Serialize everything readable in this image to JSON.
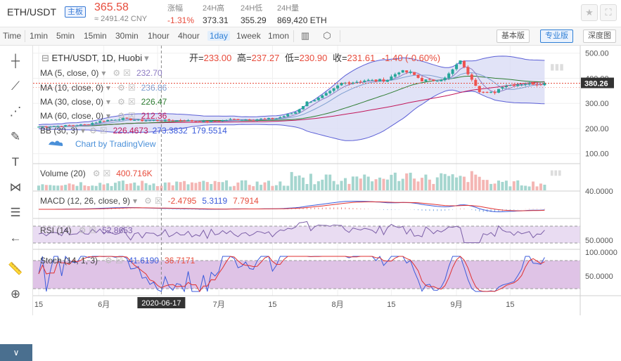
{
  "header": {
    "symbol": "ETH/USDT",
    "board_tag": "主板",
    "price": "365.58",
    "price_cny": "≈ 2491.42 CNY",
    "stats": [
      {
        "label": "涨幅",
        "value": "-1.31%",
        "color": "red"
      },
      {
        "label": "24H高",
        "value": "373.31",
        "color": "dark"
      },
      {
        "label": "24H低",
        "value": "355.29",
        "color": "dark"
      },
      {
        "label": "24H量",
        "value": "869,420 ETH",
        "color": "dark"
      }
    ],
    "icons": [
      "star-icon",
      "fullscreen-icon"
    ]
  },
  "toolbar": {
    "timeframes": [
      "Time",
      "1min",
      "5min",
      "15min",
      "30min",
      "1hour",
      "4hour",
      "1day",
      "1week",
      "1mon"
    ],
    "active_timeframe": "1day",
    "icons": [
      "candle-style-icon",
      "indicator-settings-icon"
    ],
    "views": [
      "基本版",
      "专业版",
      "深度图"
    ],
    "active_view": "专业版"
  },
  "left_tools": [
    "crosshair-icon",
    "trend-line-icon",
    "fib-icon",
    "brush-icon",
    "text-icon",
    "pattern-icon",
    "measure-icon",
    "back-arrow-icon",
    "ruler-icon",
    "zoom-icon"
  ],
  "colors": {
    "up": "#26a69a",
    "down": "#ef5350",
    "ma5": "#8e7cc3",
    "ma10": "#7f9fd0",
    "ma30": "#2e7d32",
    "ma60": "#c2185b",
    "bb_band": "#5b5fd6",
    "bb_fill": "#dadcf5",
    "macd_line": "#3b5bdb",
    "signal_line": "#e03131",
    "rsi": "#7b5ea7",
    "stoch_k": "#3b5bdb",
    "stoch_d": "#e03131"
  },
  "chart_data": {
    "type": "candlestick",
    "title": "ETH/USDT, 1D, Huobi",
    "ohlc_readout": {
      "open_label": "开=",
      "open": "233.00",
      "high_label": "高=",
      "high": "237.27",
      "low_label": "低=",
      "low": "230.90",
      "close_label": "收=",
      "close": "231.61",
      "change": "-1.40 (-0.60%)"
    },
    "watermark": "Chart by TradingView",
    "ylim": [
      60,
      530
    ],
    "y_ticks": [
      100,
      200,
      300,
      400,
      500
    ],
    "y_tick_labels": [
      "100.00",
      "200.00",
      "300.00",
      "400.00",
      "500.00"
    ],
    "last_price": 380.26,
    "last_price_label": "380.26",
    "x_tick_labels": [
      {
        "label": "15",
        "day": 0
      },
      {
        "label": "6月",
        "day": 17
      },
      {
        "label": "15",
        "day": 31
      },
      {
        "label": "7月",
        "day": 47
      },
      {
        "label": "15",
        "day": 61
      },
      {
        "label": "8月",
        "day": 78
      },
      {
        "label": "15",
        "day": 92
      },
      {
        "label": "9月",
        "day": 109
      },
      {
        "label": "15",
        "day": 123
      }
    ],
    "crosshair": {
      "day": 32,
      "label": "2020-06-17"
    },
    "indicators": [
      {
        "name": "MA (5, close, 0)",
        "value": "232.70"
      },
      {
        "name": "MA (10, close, 0)",
        "value": "236.86"
      },
      {
        "name": "MA (30, close, 0)",
        "value": "226.47"
      },
      {
        "name": "MA (60, close, 0)",
        "value": "212.36"
      },
      {
        "name": "BB (30, 3)",
        "value": "226.4673",
        "value2": "273.3832",
        "value3": "179.5514"
      }
    ],
    "volume_pane": {
      "name": "Volume (20)",
      "value": "400.716K"
    },
    "macd_pane": {
      "name": "MACD (12, 26, close, 9)",
      "value": "-2.4795",
      "value2": "5.3119",
      "value3": "7.7914",
      "axis_label": "40.0000"
    },
    "rsi_pane": {
      "name": "RSI (14)",
      "value": "52.8653",
      "axis_label": "50.0000"
    },
    "stoch_pane": {
      "name": "Stoch (14, 1, 3)",
      "value": "41.6190",
      "value2": "36.7171",
      "axis_label_top": "100.0000",
      "axis_label": "50.0000"
    },
    "close_points": [
      [
        0,
        207
      ],
      [
        6,
        210
      ],
      [
        12,
        215
      ],
      [
        17,
        232
      ],
      [
        22,
        240
      ],
      [
        26,
        232
      ],
      [
        32,
        232
      ],
      [
        38,
        232
      ],
      [
        44,
        226
      ],
      [
        50,
        236
      ],
      [
        56,
        236
      ],
      [
        62,
        240
      ],
      [
        67,
        265
      ],
      [
        70,
        305
      ],
      [
        73,
        320
      ],
      [
        76,
        345
      ],
      [
        79,
        380
      ],
      [
        82,
        385
      ],
      [
        85,
        392
      ],
      [
        88,
        390
      ],
      [
        91,
        395
      ],
      [
        94,
        428
      ],
      [
        97,
        422
      ],
      [
        100,
        392
      ],
      [
        103,
        392
      ],
      [
        106,
        400
      ],
      [
        109,
        450
      ],
      [
        110,
        475
      ],
      [
        111,
        440
      ],
      [
        113,
        400
      ],
      [
        115,
        350
      ],
      [
        117,
        340
      ],
      [
        119,
        345
      ],
      [
        121,
        370
      ],
      [
        124,
        375
      ],
      [
        127,
        380
      ],
      [
        130,
        378
      ],
      [
        132,
        380
      ]
    ]
  }
}
